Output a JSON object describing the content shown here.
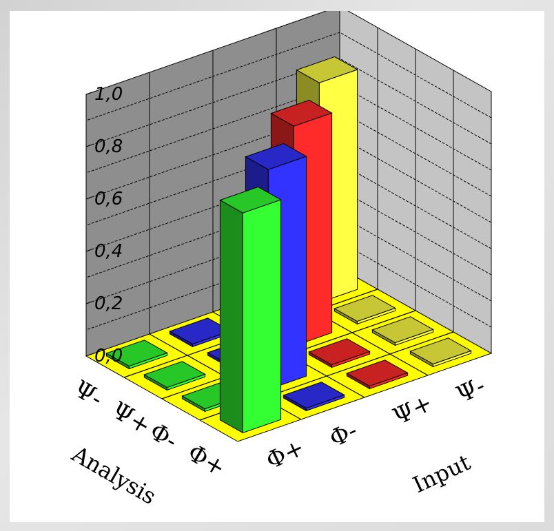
{
  "chart_data": {
    "type": "bar3d",
    "title": "",
    "xlabel": "Input",
    "ylabel": "Analysis",
    "zlim": [
      0,
      1.0
    ],
    "z_ticks": [
      "0,0",
      "0,2",
      "0,4",
      "0,6",
      "0,8",
      "1,0"
    ],
    "input_categories": [
      "Φ+",
      "Φ-",
      "Ψ+",
      "Ψ-"
    ],
    "analysis_categories": [
      "Ψ-",
      "Ψ+",
      "Φ-",
      "Φ+"
    ],
    "colors": {
      "green": "#33ff33",
      "blue": "#3333ff",
      "red": "#ff2a2a",
      "yellow": "#ffff44",
      "floor": "#ffff00",
      "wall": "#c0c0c0"
    },
    "bars": [
      {
        "input": "Φ+",
        "analysis": "Ψ-",
        "value": 0.01,
        "color": "green"
      },
      {
        "input": "Φ+",
        "analysis": "Ψ+",
        "value": 0.01,
        "color": "green"
      },
      {
        "input": "Φ+",
        "analysis": "Φ-",
        "value": 0.01,
        "color": "green"
      },
      {
        "input": "Φ+",
        "analysis": "Φ+",
        "value": 0.84,
        "color": "green"
      },
      {
        "input": "Φ-",
        "analysis": "Ψ-",
        "value": 0.01,
        "color": "blue"
      },
      {
        "input": "Φ-",
        "analysis": "Ψ+",
        "value": 0.01,
        "color": "blue"
      },
      {
        "input": "Φ-",
        "analysis": "Φ-",
        "value": 0.84,
        "color": "blue"
      },
      {
        "input": "Φ-",
        "analysis": "Φ+",
        "value": 0.01,
        "color": "blue"
      },
      {
        "input": "Ψ+",
        "analysis": "Ψ-",
        "value": 0.01,
        "color": "red"
      },
      {
        "input": "Ψ+",
        "analysis": "Ψ+",
        "value": 0.84,
        "color": "red"
      },
      {
        "input": "Ψ+",
        "analysis": "Φ-",
        "value": 0.01,
        "color": "red"
      },
      {
        "input": "Ψ+",
        "analysis": "Φ+",
        "value": 0.01,
        "color": "red"
      },
      {
        "input": "Ψ-",
        "analysis": "Ψ-",
        "value": 0.84,
        "color": "yellow"
      },
      {
        "input": "Ψ-",
        "analysis": "Ψ+",
        "value": 0.01,
        "color": "yellow"
      },
      {
        "input": "Ψ-",
        "analysis": "Φ-",
        "value": 0.01,
        "color": "yellow"
      },
      {
        "input": "Ψ-",
        "analysis": "Φ+",
        "value": 0.01,
        "color": "yellow"
      }
    ]
  }
}
